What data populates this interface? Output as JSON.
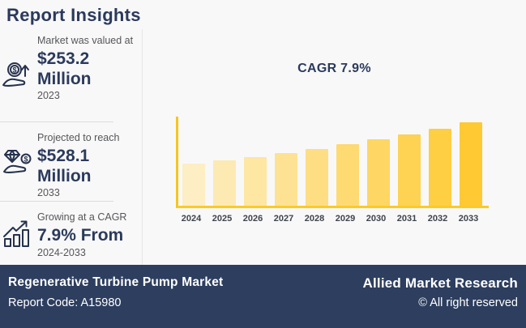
{
  "colors": {
    "background": "#f8f8f8",
    "navy": "#2b3a5c",
    "footer_background": "#2d3e5f",
    "muted_text": "#55565a",
    "axis_gold": "#f7c51e",
    "divider": "#dcdcdc"
  },
  "header": {
    "title": "Report Insights"
  },
  "sidebar": {
    "stats": [
      {
        "icon": "money-growth-icon",
        "label": "Market was valued at",
        "value": "$253.2 Million",
        "period": "2023"
      },
      {
        "icon": "value-hand-icon",
        "label": "Projected to reach",
        "value": "$528.1 Million",
        "period": "2033"
      },
      {
        "icon": "cagr-chart-icon",
        "label": "Growing at a CAGR",
        "value": "7.9% From",
        "period": "2024-2033"
      }
    ]
  },
  "chart_data": {
    "type": "bar",
    "title": "CAGR 7.9%",
    "categories": [
      "2024",
      "2025",
      "2026",
      "2027",
      "2028",
      "2029",
      "2030",
      "2031",
      "2032",
      "2033"
    ],
    "values": [
      266.4,
      287.4,
      310.1,
      334.6,
      361.1,
      389.6,
      420.4,
      453.6,
      489.4,
      528.1
    ],
    "values_note": "USD Million, estimated from bar heights; y-axis unlabeled",
    "xlabel": "",
    "ylabel": "",
    "ylim": [
      0,
      560
    ],
    "grid": false,
    "legend": "none",
    "bar_colors": [
      "#fdeec3",
      "#fdeab3",
      "#fee6a3",
      "#fee293",
      "#fede83",
      "#feda73",
      "#fed663",
      "#fed253",
      "#fece43",
      "#fec933"
    ],
    "axis_color": "#f7c51e",
    "tick_label_color": "#3e434c",
    "title_color": "#2b3a5c"
  },
  "footer": {
    "market_name": "Regenerative Turbine Pump Market",
    "report_code": "Report Code: A15980",
    "brand": "Allied Market Research",
    "copyright": "© All right reserved"
  }
}
